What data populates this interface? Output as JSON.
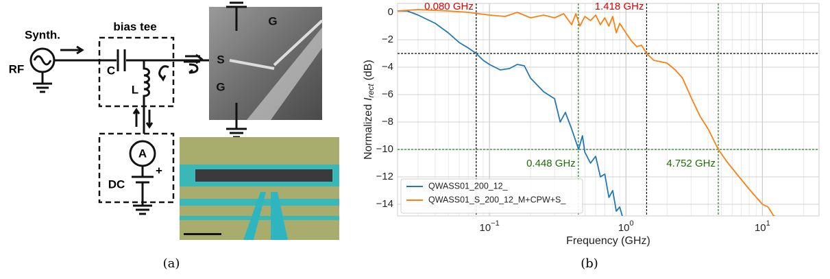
{
  "figure": {
    "panel_a": {
      "caption": "(a)",
      "synth": "Synth.",
      "rf": "RF",
      "bias_tee": "bias tee",
      "capacitor": "C",
      "inductor": "L",
      "ground_top": "G",
      "signal": "S",
      "ground_bottom": "G",
      "ammeter": "A",
      "plus": "+",
      "dc": "DC"
    },
    "panel_b": {
      "caption": "(b)"
    }
  },
  "chart_data": {
    "type": "line",
    "xlabel": "Frequency (GHz)",
    "ylabel": {
      "text": "Normalized",
      "symbol": "I",
      "subscript": "rect",
      "unit": "(dB)"
    },
    "xscale": "log",
    "xlim": [
      0.0212,
      26
    ],
    "ylim": [
      -14.85,
      0.65
    ],
    "xticks": [
      {
        "value": 0.1,
        "label": "10",
        "exponent": "−1"
      },
      {
        "value": 1,
        "label": "10",
        "exponent": "0"
      },
      {
        "value": 10,
        "label": "10",
        "exponent": "1"
      }
    ],
    "xminorticks": [
      0.03,
      0.04,
      0.05,
      0.06,
      0.07,
      0.08,
      0.09,
      0.2,
      0.3,
      0.4,
      0.5,
      0.6,
      0.7,
      0.8,
      0.9,
      2,
      3,
      4,
      5,
      6,
      7,
      8,
      9,
      20
    ],
    "yticks": [
      0,
      {
        "value": -2,
        "label": "−2"
      },
      {
        "value": -4,
        "label": "−4"
      },
      {
        "value": -6,
        "label": "−6"
      },
      {
        "value": -8,
        "label": "−8"
      },
      {
        "value": -10,
        "label": "−10"
      },
      {
        "value": -12,
        "label": "−12"
      },
      {
        "value": -14,
        "label": "−14"
      }
    ],
    "grid": true,
    "legend": "lower left",
    "series": [
      {
        "name": "QWASS01_200_12_",
        "color": "#1f77b4",
        "x": [
          0.0212,
          0.025,
          0.03,
          0.04,
          0.05,
          0.06,
          0.07,
          0.08,
          0.09,
          0.1,
          0.12,
          0.14,
          0.16,
          0.18,
          0.2,
          0.25,
          0.3,
          0.33,
          0.36,
          0.4,
          0.45,
          0.48,
          0.5,
          0.55,
          0.6,
          0.65,
          0.7,
          0.75,
          0.8,
          0.85,
          0.9,
          0.95
        ],
        "values": [
          0.1,
          0.1,
          -0.2,
          -0.8,
          -1.5,
          -2.2,
          -2.6,
          -3.0,
          -3.5,
          -3.8,
          -4.2,
          -4.1,
          -3.8,
          -3.9,
          -4.8,
          -5.8,
          -6.3,
          -8.0,
          -7.3,
          -8.5,
          -10.0,
          -9.0,
          -10.2,
          -11.0,
          -10.5,
          -12.0,
          -11.8,
          -13.5,
          -13.0,
          -14.5,
          -14.2,
          -15.0
        ]
      },
      {
        "name": "QWASS01_S_200_12_M+CPW+S_",
        "color": "#ff7f0e",
        "x": [
          0.0212,
          0.03,
          0.05,
          0.07,
          0.1,
          0.13,
          0.16,
          0.2,
          0.25,
          0.3,
          0.35,
          0.4,
          0.43,
          0.46,
          0.5,
          0.55,
          0.6,
          0.65,
          0.7,
          0.75,
          0.8,
          0.85,
          0.9,
          1.0,
          1.1,
          1.2,
          1.3,
          1.418,
          1.6,
          2.0,
          2.3,
          2.6,
          3.0,
          3.5,
          4.0,
          4.752,
          5.5,
          6.5,
          8,
          10,
          11,
          12,
          13
        ],
        "values": [
          0.1,
          0.2,
          0.1,
          0.0,
          -0.2,
          -0.3,
          0.0,
          -0.4,
          -0.2,
          -0.4,
          -0.1,
          -0.9,
          -0.1,
          -1.0,
          -0.3,
          -0.6,
          -0.2,
          -0.9,
          -0.4,
          -1.0,
          -0.3,
          -1.5,
          -0.8,
          -1.5,
          -2.1,
          -2.5,
          -2.4,
          -3.0,
          -3.5,
          -3.7,
          -4.2,
          -4.8,
          -6.2,
          -7.6,
          -8.5,
          -10.0,
          -10.9,
          -11.8,
          -12.9,
          -14.0,
          -14.2,
          -14.8,
          -15.0
        ]
      }
    ],
    "hlines": [
      {
        "y": -3,
        "color": "#000000"
      },
      {
        "y": -10,
        "color": "#1a7f1a"
      }
    ],
    "vlines": [
      {
        "x": 0.08,
        "label": "0.080 GHz",
        "color": "#000000",
        "label_color": "#e00000"
      },
      {
        "x": 1.418,
        "label": "1.418 GHz",
        "color": "#000000",
        "label_color": "#e00000"
      },
      {
        "x": 0.448,
        "label": "0.448 GHz",
        "color": "#1a7f1a",
        "label_color": "#1a6e00"
      },
      {
        "x": 4.752,
        "label": "4.752 GHz",
        "color": "#1a7f1a",
        "label_color": "#1a6e00"
      }
    ]
  }
}
